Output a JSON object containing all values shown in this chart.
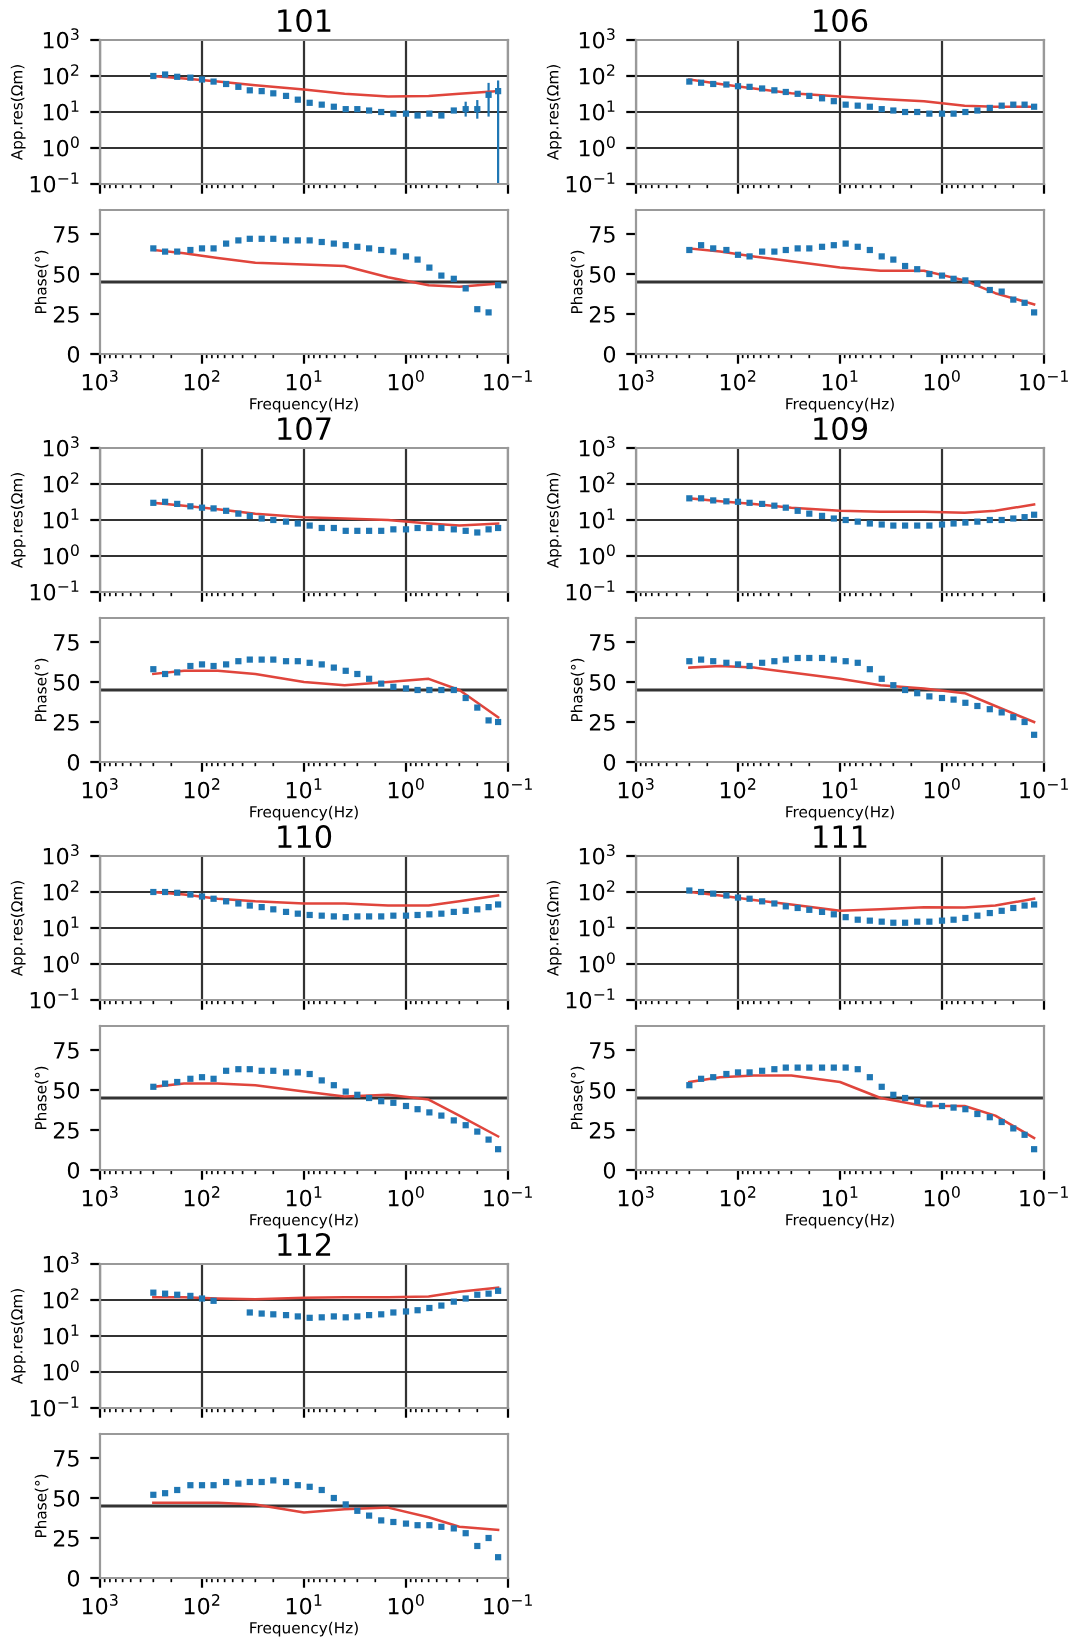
{
  "chart_data": [
    {
      "type": "scatter",
      "title": "101",
      "ylabel": "App.res(Ωm)",
      "log": "xy",
      "grid": true,
      "tick_labels": "y",
      "xlim": [
        1000,
        0.1
      ],
      "xticks": [
        {
          "value": 1000,
          "label": null
        },
        {
          "value": 100,
          "label": null
        },
        {
          "value": 10,
          "label": null
        },
        {
          "value": 1,
          "label": null
        },
        {
          "value": 0.1,
          "label": null
        }
      ],
      "ylim": [
        0.1,
        1000
      ],
      "yticks": [
        {
          "value": 0.1,
          "label": "10$^{−1}$"
        },
        {
          "value": 1,
          "label": "10$^{0}$"
        },
        {
          "value": 10,
          "label": "10$^{1}$"
        },
        {
          "value": 100,
          "label": "10$^{2}$"
        },
        {
          "value": 1000,
          "label": "10$^{3}$"
        }
      ],
      "x": [
        300,
        230,
        175,
        130,
        100,
        77,
        58,
        44,
        34,
        26,
        20,
        15,
        11.5,
        8.8,
        6.7,
        5.1,
        3.9,
        3.0,
        2.3,
        1.75,
        1.33,
        1.0,
        0.77,
        0.59,
        0.45,
        0.34,
        0.26,
        0.2,
        0.155,
        0.125
      ],
      "series": [
        {
          "marker": "square",
          "color": "#1f77b4",
          "values": [
            100,
            110,
            95,
            90,
            80,
            70,
            60,
            50,
            40,
            38,
            33,
            28,
            22,
            18,
            16,
            14,
            12,
            12,
            11,
            10,
            9,
            9,
            8,
            9,
            8,
            11,
            12,
            12,
            30,
            38
          ],
          "errors": [
            null,
            null,
            null,
            null,
            null,
            null,
            null,
            null,
            null,
            null,
            null,
            null,
            null,
            null,
            null,
            null,
            null,
            null,
            null,
            null,
            null,
            null,
            null,
            null,
            null,
            null,
            [
              8,
              18
            ],
            [
              7,
              20
            ],
            [
              8,
              60
            ],
            [
              0.1,
              70
            ]
          ]
        },
        {
          "type": "line",
          "color": "#e0453c",
          "x": [
            300,
            150,
            70,
            30,
            10,
            4,
            1.5,
            0.6,
            0.3,
            0.125
          ],
          "values": [
            100,
            85,
            70,
            55,
            42,
            32,
            27,
            28,
            32,
            38
          ]
        }
      ]
    },
    {
      "type": "scatter",
      "xlabel": "Frequency(Hz)",
      "ylabel": "Phase(°)",
      "log": "x",
      "xlim": [
        1000,
        0.1
      ],
      "xticks": [
        {
          "value": 1000,
          "label": "10$^{3}$"
        },
        {
          "value": 100,
          "label": "10$^{2}$"
        },
        {
          "value": 10,
          "label": "10$^{1}$"
        },
        {
          "value": 1,
          "label": "10$^{0}$"
        },
        {
          "value": 0.1,
          "label": "10$^{−1}$"
        }
      ],
      "ylim": [
        0,
        90
      ],
      "yticks": [
        0,
        25,
        50,
        75
      ],
      "ref_lines": [
        {
          "axis": "y",
          "value": 45,
          "color": "#333333"
        }
      ],
      "x": [
        300,
        230,
        175,
        130,
        100,
        77,
        58,
        44,
        34,
        26,
        20,
        15,
        11.5,
        8.8,
        6.7,
        5.1,
        3.9,
        3.0,
        2.3,
        1.75,
        1.33,
        1.0,
        0.77,
        0.59,
        0.45,
        0.34,
        0.26,
        0.2,
        0.155,
        0.125
      ],
      "series": [
        {
          "marker": "square",
          "color": "#1f77b4",
          "values": [
            66,
            64,
            64,
            65,
            66,
            66,
            69,
            71,
            72,
            72,
            72,
            71,
            71,
            71,
            70,
            69,
            68,
            67,
            66,
            65,
            64,
            61,
            59,
            54,
            49,
            47,
            41,
            28,
            26,
            43
          ]
        },
        {
          "type": "line",
          "color": "#e0453c",
          "x": [
            300,
            150,
            70,
            30,
            10,
            4,
            1.5,
            0.6,
            0.3,
            0.125
          ],
          "values": [
            65,
            63,
            60,
            57,
            56,
            55,
            48,
            43,
            42,
            44
          ]
        }
      ]
    },
    {
      "type": "scatter",
      "title": "106",
      "ylabel": "App.res(Ωm)",
      "log": "xy",
      "grid": true,
      "tick_labels": "y",
      "xlim": [
        1000,
        0.1
      ],
      "xticks": [
        {
          "value": 1000,
          "label": null
        },
        {
          "value": 100,
          "label": null
        },
        {
          "value": 10,
          "label": null
        },
        {
          "value": 1,
          "label": null
        },
        {
          "value": 0.1,
          "label": null
        }
      ],
      "ylim": [
        0.1,
        1000
      ],
      "yticks": [
        {
          "value": 0.1,
          "label": "10$^{−1}$"
        },
        {
          "value": 1,
          "label": "10$^{0}$"
        },
        {
          "value": 10,
          "label": "10$^{1}$"
        },
        {
          "value": 100,
          "label": "10$^{2}$"
        },
        {
          "value": 1000,
          "label": "10$^{3}$"
        }
      ],
      "x": [
        300,
        230,
        175,
        130,
        100,
        77,
        58,
        44,
        34,
        26,
        20,
        15,
        11.5,
        8.8,
        6.7,
        5.1,
        3.9,
        3.0,
        2.3,
        1.75,
        1.33,
        1.0,
        0.77,
        0.59,
        0.45,
        0.34,
        0.26,
        0.2,
        0.155,
        0.125
      ],
      "series": [
        {
          "marker": "square",
          "color": "#1f77b4",
          "values": [
            70,
            65,
            60,
            58,
            52,
            50,
            45,
            40,
            36,
            32,
            28,
            24,
            20,
            16,
            15,
            14,
            12,
            11,
            10,
            10,
            9,
            9,
            9,
            10,
            11,
            13,
            15,
            16,
            16,
            14
          ]
        },
        {
          "type": "line",
          "color": "#e0453c",
          "x": [
            300,
            150,
            70,
            30,
            10,
            4,
            1.5,
            0.6,
            0.3,
            0.125
          ],
          "values": [
            80,
            60,
            45,
            33,
            27,
            23,
            20,
            15,
            14,
            14
          ]
        }
      ]
    },
    {
      "type": "scatter",
      "xlabel": "Frequency(Hz)",
      "ylabel": "Phase(°)",
      "log": "x",
      "xlim": [
        1000,
        0.1
      ],
      "xticks": [
        {
          "value": 1000,
          "label": "10$^{3}$"
        },
        {
          "value": 100,
          "label": "10$^{2}$"
        },
        {
          "value": 10,
          "label": "10$^{1}$"
        },
        {
          "value": 1,
          "label": "10$^{0}$"
        },
        {
          "value": 0.1,
          "label": "10$^{−1}$"
        }
      ],
      "ylim": [
        0,
        90
      ],
      "yticks": [
        0,
        25,
        50,
        75
      ],
      "ref_lines": [
        {
          "axis": "y",
          "value": 45,
          "color": "#333333"
        }
      ],
      "x": [
        300,
        230,
        175,
        130,
        100,
        77,
        58,
        44,
        34,
        26,
        20,
        15,
        11.5,
        8.8,
        6.7,
        5.1,
        3.9,
        3.0,
        2.3,
        1.75,
        1.33,
        1.0,
        0.77,
        0.59,
        0.45,
        0.34,
        0.26,
        0.2,
        0.155,
        0.125
      ],
      "series": [
        {
          "marker": "square",
          "color": "#1f77b4",
          "values": [
            65,
            68,
            66,
            65,
            62,
            61,
            64,
            64,
            65,
            66,
            66,
            67,
            68,
            69,
            67,
            65,
            61,
            59,
            55,
            53,
            50,
            49,
            47,
            46,
            44,
            40,
            39,
            34,
            32,
            26
          ]
        },
        {
          "type": "line",
          "color": "#e0453c",
          "x": [
            300,
            150,
            70,
            30,
            10,
            4,
            1.5,
            0.6,
            0.3,
            0.125
          ],
          "values": [
            66,
            64,
            61,
            58,
            54,
            52,
            52,
            46,
            38,
            31
          ]
        }
      ]
    },
    {
      "type": "scatter",
      "title": "107",
      "ylabel": "App.res(Ωm)",
      "log": "xy",
      "grid": true,
      "tick_labels": "y",
      "xlim": [
        1000,
        0.1
      ],
      "xticks": [
        {
          "value": 1000,
          "label": null
        },
        {
          "value": 100,
          "label": null
        },
        {
          "value": 10,
          "label": null
        },
        {
          "value": 1,
          "label": null
        },
        {
          "value": 0.1,
          "label": null
        }
      ],
      "ylim": [
        0.1,
        1000
      ],
      "yticks": [
        {
          "value": 0.1,
          "label": "10$^{−1}$"
        },
        {
          "value": 1,
          "label": "10$^{0}$"
        },
        {
          "value": 10,
          "label": "10$^{1}$"
        },
        {
          "value": 100,
          "label": "10$^{2}$"
        },
        {
          "value": 1000,
          "label": "10$^{3}$"
        }
      ],
      "x": [
        300,
        230,
        175,
        130,
        100,
        77,
        58,
        44,
        34,
        26,
        20,
        15,
        11.5,
        8.8,
        6.7,
        5.1,
        3.9,
        3.0,
        2.3,
        1.75,
        1.33,
        1.0,
        0.77,
        0.59,
        0.45,
        0.34,
        0.26,
        0.2,
        0.155,
        0.125
      ],
      "series": [
        {
          "marker": "square",
          "color": "#1f77b4",
          "values": [
            30,
            32,
            28,
            24,
            22,
            21,
            18,
            15,
            13,
            11,
            10,
            9,
            8,
            7,
            6,
            6,
            5,
            5,
            5,
            5,
            5.5,
            5.5,
            6,
            6,
            6,
            5.5,
            5,
            4.5,
            5.5,
            6
          ]
        },
        {
          "type": "line",
          "color": "#e0453c",
          "x": [
            300,
            150,
            70,
            30,
            10,
            4,
            1.5,
            0.6,
            0.3,
            0.125
          ],
          "values": [
            30,
            25,
            20,
            15,
            12,
            11,
            10,
            8,
            7,
            8
          ]
        }
      ]
    },
    {
      "type": "scatter",
      "xlabel": "Frequency(Hz)",
      "ylabel": "Phase(°)",
      "log": "x",
      "xlim": [
        1000,
        0.1
      ],
      "xticks": [
        {
          "value": 1000,
          "label": "10$^{3}$"
        },
        {
          "value": 100,
          "label": "10$^{2}$"
        },
        {
          "value": 10,
          "label": "10$^{1}$"
        },
        {
          "value": 1,
          "label": "10$^{0}$"
        },
        {
          "value": 0.1,
          "label": "10$^{−1}$"
        }
      ],
      "ylim": [
        0,
        90
      ],
      "yticks": [
        0,
        25,
        50,
        75
      ],
      "ref_lines": [
        {
          "axis": "y",
          "value": 45,
          "color": "#333333"
        }
      ],
      "x": [
        300,
        230,
        175,
        130,
        100,
        77,
        58,
        44,
        34,
        26,
        20,
        15,
        11.5,
        8.8,
        6.7,
        5.1,
        3.9,
        3.0,
        2.3,
        1.75,
        1.33,
        1.0,
        0.77,
        0.59,
        0.45,
        0.34,
        0.26,
        0.2,
        0.155,
        0.125
      ],
      "series": [
        {
          "marker": "square",
          "color": "#1f77b4",
          "values": [
            58,
            55,
            56,
            60,
            61,
            60,
            61,
            63,
            64,
            64,
            64,
            63,
            63,
            62,
            61,
            59,
            57,
            55,
            52,
            49,
            47,
            46,
            45,
            45,
            45,
            45,
            40,
            34,
            26,
            25
          ]
        },
        {
          "type": "line",
          "color": "#e0453c",
          "x": [
            300,
            150,
            70,
            30,
            10,
            4,
            1.5,
            0.6,
            0.3,
            0.125
          ],
          "values": [
            55,
            57,
            57,
            55,
            50,
            48,
            50,
            52,
            45,
            28
          ]
        }
      ]
    },
    {
      "type": "scatter",
      "title": "109",
      "ylabel": "App.res(Ωm)",
      "log": "xy",
      "grid": true,
      "tick_labels": "y",
      "xlim": [
        1000,
        0.1
      ],
      "xticks": [
        {
          "value": 1000,
          "label": null
        },
        {
          "value": 100,
          "label": null
        },
        {
          "value": 10,
          "label": null
        },
        {
          "value": 1,
          "label": null
        },
        {
          "value": 0.1,
          "label": null
        }
      ],
      "ylim": [
        0.1,
        1000
      ],
      "yticks": [
        {
          "value": 0.1,
          "label": "10$^{−1}$"
        },
        {
          "value": 1,
          "label": "10$^{0}$"
        },
        {
          "value": 10,
          "label": "10$^{1}$"
        },
        {
          "value": 100,
          "label": "10$^{2}$"
        },
        {
          "value": 1000,
          "label": "10$^{3}$"
        }
      ],
      "x": [
        300,
        230,
        175,
        130,
        100,
        77,
        58,
        44,
        34,
        26,
        20,
        15,
        11.5,
        8.8,
        6.7,
        5.1,
        3.9,
        3.0,
        2.3,
        1.75,
        1.33,
        1.0,
        0.77,
        0.59,
        0.45,
        0.34,
        0.26,
        0.2,
        0.155,
        0.125
      ],
      "series": [
        {
          "marker": "square",
          "color": "#1f77b4",
          "values": [
            40,
            40,
            35,
            33,
            32,
            30,
            28,
            25,
            22,
            18,
            15,
            13,
            11,
            10,
            9,
            8,
            7.5,
            7,
            7,
            7,
            7,
            7.5,
            8,
            8.5,
            9,
            10,
            10,
            11,
            12,
            14
          ]
        },
        {
          "type": "line",
          "color": "#e0453c",
          "x": [
            300,
            150,
            70,
            30,
            10,
            4,
            1.5,
            0.6,
            0.3,
            0.125
          ],
          "values": [
            40,
            33,
            28,
            22,
            18,
            17,
            17,
            16,
            18,
            27
          ]
        }
      ]
    },
    {
      "type": "scatter",
      "xlabel": "Frequency(Hz)",
      "ylabel": "Phase(°)",
      "log": "x",
      "xlim": [
        1000,
        0.1
      ],
      "xticks": [
        {
          "value": 1000,
          "label": "10$^{3}$"
        },
        {
          "value": 100,
          "label": "10$^{2}$"
        },
        {
          "value": 10,
          "label": "10$^{1}$"
        },
        {
          "value": 1,
          "label": "10$^{0}$"
        },
        {
          "value": 0.1,
          "label": "10$^{−1}$"
        }
      ],
      "ylim": [
        0,
        90
      ],
      "yticks": [
        0,
        25,
        50,
        75
      ],
      "ref_lines": [
        {
          "axis": "y",
          "value": 45,
          "color": "#333333"
        }
      ],
      "x": [
        300,
        230,
        175,
        130,
        100,
        77,
        58,
        44,
        34,
        26,
        20,
        15,
        11.5,
        8.8,
        6.7,
        5.1,
        3.9,
        3.0,
        2.3,
        1.75,
        1.33,
        1.0,
        0.77,
        0.59,
        0.45,
        0.34,
        0.26,
        0.2,
        0.155,
        0.125
      ],
      "series": [
        {
          "marker": "square",
          "color": "#1f77b4",
          "values": [
            63,
            64,
            63,
            62,
            61,
            60,
            62,
            63,
            64,
            65,
            65,
            65,
            64,
            63,
            62,
            58,
            52,
            48,
            45,
            43,
            41,
            40,
            39,
            37,
            35,
            33,
            31,
            28,
            25,
            17
          ]
        },
        {
          "type": "line",
          "color": "#e0453c",
          "x": [
            300,
            150,
            70,
            30,
            10,
            4,
            1.5,
            0.6,
            0.3,
            0.125
          ],
          "values": [
            59,
            60,
            59,
            56,
            52,
            48,
            46,
            43,
            35,
            25
          ]
        }
      ]
    },
    {
      "type": "scatter",
      "title": "110",
      "ylabel": "App.res(Ωm)",
      "log": "xy",
      "grid": true,
      "tick_labels": "y",
      "xlim": [
        1000,
        0.1
      ],
      "xticks": [
        {
          "value": 1000,
          "label": null
        },
        {
          "value": 100,
          "label": null
        },
        {
          "value": 10,
          "label": null
        },
        {
          "value": 1,
          "label": null
        },
        {
          "value": 0.1,
          "label": null
        }
      ],
      "ylim": [
        0.1,
        1000
      ],
      "yticks": [
        {
          "value": 0.1,
          "label": "10$^{−1}$"
        },
        {
          "value": 1,
          "label": "10$^{0}$"
        },
        {
          "value": 10,
          "label": "10$^{1}$"
        },
        {
          "value": 100,
          "label": "10$^{2}$"
        },
        {
          "value": 1000,
          "label": "10$^{3}$"
        }
      ],
      "x": [
        300,
        230,
        175,
        130,
        100,
        77,
        58,
        44,
        34,
        26,
        20,
        15,
        11.5,
        8.8,
        6.7,
        5.1,
        3.9,
        3.0,
        2.3,
        1.75,
        1.33,
        1.0,
        0.77,
        0.59,
        0.45,
        0.34,
        0.26,
        0.2,
        0.155,
        0.125
      ],
      "series": [
        {
          "marker": "square",
          "color": "#1f77b4",
          "values": [
            100,
            100,
            95,
            85,
            75,
            65,
            55,
            48,
            42,
            38,
            33,
            28,
            25,
            23,
            22,
            21,
            20,
            21,
            21,
            21,
            22,
            22,
            23,
            24,
            25,
            28,
            30,
            33,
            38,
            45
          ]
        },
        {
          "type": "line",
          "color": "#e0453c",
          "x": [
            300,
            150,
            70,
            30,
            10,
            4,
            1.5,
            0.6,
            0.3,
            0.125
          ],
          "values": [
            100,
            85,
            65,
            55,
            48,
            48,
            42,
            42,
            55,
            80
          ]
        }
      ]
    },
    {
      "type": "scatter",
      "xlabel": "Frequency(Hz)",
      "ylabel": "Phase(°)",
      "log": "x",
      "xlim": [
        1000,
        0.1
      ],
      "xticks": [
        {
          "value": 1000,
          "label": "10$^{3}$"
        },
        {
          "value": 100,
          "label": "10$^{2}$"
        },
        {
          "value": 10,
          "label": "10$^{1}$"
        },
        {
          "value": 1,
          "label": "10$^{0}$"
        },
        {
          "value": 0.1,
          "label": "10$^{−1}$"
        }
      ],
      "ylim": [
        0,
        90
      ],
      "yticks": [
        0,
        25,
        50,
        75
      ],
      "ref_lines": [
        {
          "axis": "y",
          "value": 45,
          "color": "#333333"
        }
      ],
      "x": [
        300,
        230,
        175,
        130,
        100,
        77,
        58,
        44,
        34,
        26,
        20,
        15,
        11.5,
        8.8,
        6.7,
        5.1,
        3.9,
        3.0,
        2.3,
        1.75,
        1.33,
        1.0,
        0.77,
        0.59,
        0.45,
        0.34,
        0.26,
        0.2,
        0.155,
        0.125
      ],
      "series": [
        {
          "marker": "square",
          "color": "#1f77b4",
          "values": [
            52,
            54,
            55,
            57,
            58,
            57,
            62,
            63,
            63,
            62,
            62,
            61,
            61,
            60,
            56,
            53,
            49,
            47,
            45,
            43,
            42,
            40,
            38,
            36,
            34,
            31,
            28,
            24,
            19,
            13
          ]
        },
        {
          "type": "line",
          "color": "#e0453c",
          "x": [
            300,
            150,
            70,
            30,
            10,
            4,
            1.5,
            0.6,
            0.3,
            0.125
          ],
          "values": [
            52,
            54,
            54,
            53,
            49,
            46,
            47,
            44,
            34,
            21
          ]
        }
      ]
    },
    {
      "type": "scatter",
      "title": "111",
      "ylabel": "App.res(Ωm)",
      "log": "xy",
      "grid": true,
      "tick_labels": "y",
      "xlim": [
        1000,
        0.1
      ],
      "xticks": [
        {
          "value": 1000,
          "label": null
        },
        {
          "value": 100,
          "label": null
        },
        {
          "value": 10,
          "label": null
        },
        {
          "value": 1,
          "label": null
        },
        {
          "value": 0.1,
          "label": null
        }
      ],
      "ylim": [
        0.1,
        1000
      ],
      "yticks": [
        {
          "value": 0.1,
          "label": "10$^{−1}$"
        },
        {
          "value": 1,
          "label": "10$^{0}$"
        },
        {
          "value": 10,
          "label": "10$^{1}$"
        },
        {
          "value": 100,
          "label": "10$^{2}$"
        },
        {
          "value": 1000,
          "label": "10$^{3}$"
        }
      ],
      "x": [
        300,
        230,
        175,
        130,
        100,
        77,
        58,
        44,
        34,
        26,
        20,
        15,
        11.5,
        8.8,
        6.7,
        5.1,
        3.9,
        3.0,
        2.3,
        1.75,
        1.33,
        1.0,
        0.77,
        0.59,
        0.45,
        0.34,
        0.26,
        0.2,
        0.155,
        0.125
      ],
      "series": [
        {
          "marker": "square",
          "color": "#1f77b4",
          "values": [
            110,
            100,
            90,
            80,
            70,
            65,
            55,
            48,
            40,
            36,
            32,
            28,
            24,
            20,
            17,
            16,
            15,
            14,
            14,
            15,
            15,
            16,
            17,
            19,
            22,
            26,
            30,
            36,
            42,
            45
          ]
        },
        {
          "type": "line",
          "color": "#e0453c",
          "x": [
            300,
            150,
            70,
            30,
            10,
            4,
            1.5,
            0.6,
            0.3,
            0.125
          ],
          "values": [
            100,
            80,
            60,
            45,
            30,
            33,
            38,
            37,
            42,
            65
          ]
        }
      ]
    },
    {
      "type": "scatter",
      "xlabel": "Frequency(Hz)",
      "ylabel": "Phase(°)",
      "log": "x",
      "xlim": [
        1000,
        0.1
      ],
      "xticks": [
        {
          "value": 1000,
          "label": "10$^{3}$"
        },
        {
          "value": 100,
          "label": "10$^{2}$"
        },
        {
          "value": 10,
          "label": "10$^{1}$"
        },
        {
          "value": 1,
          "label": "10$^{0}$"
        },
        {
          "value": 0.1,
          "label": "10$^{−1}$"
        }
      ],
      "ylim": [
        0,
        90
      ],
      "yticks": [
        0,
        25,
        50,
        75
      ],
      "ref_lines": [
        {
          "axis": "y",
          "value": 45,
          "color": "#333333"
        }
      ],
      "x": [
        300,
        230,
        175,
        130,
        100,
        77,
        58,
        44,
        34,
        26,
        20,
        15,
        11.5,
        8.8,
        6.7,
        5.1,
        3.9,
        3.0,
        2.3,
        1.75,
        1.33,
        1.0,
        0.77,
        0.59,
        0.45,
        0.34,
        0.26,
        0.2,
        0.155,
        0.125
      ],
      "series": [
        {
          "marker": "square",
          "color": "#1f77b4",
          "values": [
            53,
            57,
            58,
            60,
            61,
            61,
            62,
            63,
            64,
            64,
            64,
            64,
            64,
            64,
            63,
            58,
            52,
            47,
            45,
            43,
            41,
            40,
            39,
            38,
            35,
            33,
            30,
            26,
            22,
            13
          ]
        },
        {
          "type": "line",
          "color": "#e0453c",
          "x": [
            300,
            150,
            70,
            30,
            10,
            4,
            1.5,
            0.6,
            0.3,
            0.125
          ],
          "values": [
            55,
            58,
            59,
            59,
            55,
            45,
            40,
            40,
            34,
            20
          ]
        }
      ]
    },
    {
      "type": "scatter",
      "title": "112",
      "ylabel": "App.res(Ωm)",
      "log": "xy",
      "grid": true,
      "tick_labels": "y",
      "xlim": [
        1000,
        0.1
      ],
      "xticks": [
        {
          "value": 1000,
          "label": null
        },
        {
          "value": 100,
          "label": null
        },
        {
          "value": 10,
          "label": null
        },
        {
          "value": 1,
          "label": null
        },
        {
          "value": 0.1,
          "label": null
        }
      ],
      "ylim": [
        0.1,
        1000
      ],
      "yticks": [
        {
          "value": 0.1,
          "label": "10$^{−1}$"
        },
        {
          "value": 1,
          "label": "10$^{0}$"
        },
        {
          "value": 10,
          "label": "10$^{1}$"
        },
        {
          "value": 100,
          "label": "10$^{2}$"
        },
        {
          "value": 1000,
          "label": "10$^{3}$"
        }
      ],
      "x": [
        300,
        230,
        175,
        130,
        100,
        77,
        58,
        44,
        34,
        26,
        20,
        15,
        11.5,
        8.8,
        6.7,
        5.1,
        3.9,
        3.0,
        2.3,
        1.75,
        1.33,
        1.0,
        0.77,
        0.59,
        0.45,
        0.34,
        0.26,
        0.2,
        0.155,
        0.125
      ],
      "series": [
        {
          "marker": "square",
          "color": "#1f77b4",
          "values": [
            160,
            150,
            140,
            130,
            110,
            95,
            null,
            null,
            45,
            42,
            40,
            38,
            35,
            32,
            33,
            35,
            33,
            35,
            38,
            40,
            45,
            48,
            52,
            60,
            70,
            90,
            110,
            140,
            150,
            180
          ]
        },
        {
          "type": "line",
          "color": "#e0453c",
          "x": [
            300,
            150,
            70,
            30,
            10,
            4,
            1.5,
            0.6,
            0.3,
            0.125
          ],
          "values": [
            120,
            120,
            110,
            105,
            115,
            120,
            120,
            125,
            170,
            220
          ]
        }
      ]
    },
    {
      "type": "scatter",
      "xlabel": "Frequency(Hz)",
      "ylabel": "Phase(°)",
      "log": "x",
      "xlim": [
        1000,
        0.1
      ],
      "xticks": [
        {
          "value": 1000,
          "label": "10$^{3}$"
        },
        {
          "value": 100,
          "label": "10$^{2}$"
        },
        {
          "value": 10,
          "label": "10$^{1}$"
        },
        {
          "value": 1,
          "label": "10$^{0}$"
        },
        {
          "value": 0.1,
          "label": "10$^{−1}$"
        }
      ],
      "ylim": [
        0,
        90
      ],
      "yticks": [
        0,
        25,
        50,
        75
      ],
      "ref_lines": [
        {
          "axis": "y",
          "value": 45,
          "color": "#333333"
        }
      ],
      "x": [
        300,
        230,
        175,
        130,
        100,
        77,
        58,
        44,
        34,
        26,
        20,
        15,
        11.5,
        8.8,
        6.7,
        5.1,
        3.9,
        3.0,
        2.3,
        1.75,
        1.33,
        1.0,
        0.77,
        0.59,
        0.45,
        0.34,
        0.26,
        0.2,
        0.155,
        0.125
      ],
      "series": [
        {
          "marker": "square",
          "color": "#1f77b4",
          "values": [
            52,
            53,
            55,
            58,
            58,
            58,
            60,
            59,
            60,
            60,
            61,
            60,
            58,
            57,
            55,
            50,
            46,
            42,
            39,
            36,
            35,
            34,
            33,
            33,
            32,
            31,
            28,
            20,
            25,
            13
          ]
        },
        {
          "type": "line",
          "color": "#e0453c",
          "x": [
            300,
            150,
            70,
            30,
            10,
            4,
            1.5,
            0.6,
            0.3,
            0.125
          ],
          "values": [
            47,
            47,
            47,
            46,
            41,
            43,
            44,
            38,
            32,
            30
          ]
        }
      ]
    }
  ]
}
